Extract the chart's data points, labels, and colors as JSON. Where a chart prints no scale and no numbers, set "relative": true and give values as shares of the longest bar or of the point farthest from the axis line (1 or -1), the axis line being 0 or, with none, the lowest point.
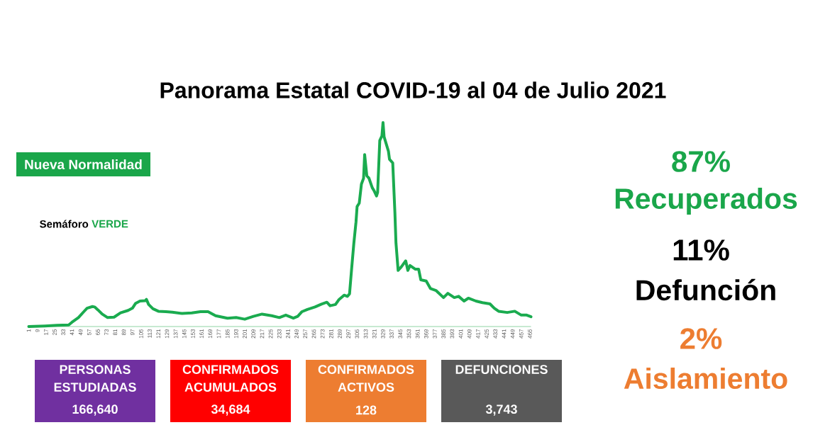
{
  "chart_data": [
    {
      "type": "line",
      "title": "Panorama Estatal COVID-19 al 04 de Julio 2021",
      "relative": true,
      "color": "#1aab4f",
      "x": [
        1,
        16,
        27,
        38,
        41,
        47,
        52,
        55,
        60,
        62,
        65,
        69,
        74,
        80,
        86,
        93,
        97,
        100,
        104,
        109,
        110,
        112,
        116,
        121,
        128,
        134,
        143,
        152,
        160,
        167,
        174,
        185,
        193,
        201,
        209,
        217,
        226,
        233,
        239,
        246,
        250,
        254,
        259,
        266,
        272,
        277,
        280,
        285,
        288,
        293,
        296,
        298,
        300,
        302,
        304,
        305,
        307,
        309,
        311,
        312,
        314,
        316,
        319,
        321,
        323,
        324,
        326,
        328,
        329,
        330,
        334,
        335,
        338,
        340,
        341,
        343,
        346,
        350,
        352,
        354,
        359,
        362,
        364,
        369,
        373,
        378,
        385,
        389,
        395,
        399,
        404,
        408,
        415,
        421,
        428,
        432,
        436,
        444,
        451,
        457,
        462,
        466
      ],
      "values": [
        0,
        0.003,
        0.006,
        0.008,
        0.021,
        0.044,
        0.073,
        0.09,
        0.098,
        0.096,
        0.082,
        0.061,
        0.044,
        0.046,
        0.067,
        0.079,
        0.09,
        0.114,
        0.125,
        0.127,
        0.133,
        0.108,
        0.087,
        0.075,
        0.073,
        0.07,
        0.064,
        0.067,
        0.073,
        0.073,
        0.053,
        0.041,
        0.044,
        0.036,
        0.05,
        0.061,
        0.053,
        0.044,
        0.056,
        0.041,
        0.05,
        0.073,
        0.084,
        0.096,
        0.11,
        0.119,
        0.102,
        0.108,
        0.131,
        0.154,
        0.148,
        0.16,
        0.287,
        0.409,
        0.513,
        0.588,
        0.605,
        0.698,
        0.727,
        0.843,
        0.739,
        0.727,
        0.681,
        0.663,
        0.64,
        0.657,
        0.912,
        0.935,
        1,
        0.93,
        0.86,
        0.82,
        0.802,
        0.559,
        0.409,
        0.275,
        0.293,
        0.322,
        0.275,
        0.299,
        0.281,
        0.281,
        0.229,
        0.223,
        0.186,
        0.177,
        0.142,
        0.163,
        0.142,
        0.148,
        0.125,
        0.139,
        0.125,
        0.117,
        0.111,
        0.09,
        0.075,
        0.069,
        0.075,
        0.056,
        0.056,
        0.048
      ],
      "xlim": [
        1,
        466
      ],
      "xticks": [
        1,
        9,
        17,
        25,
        33,
        41,
        49,
        57,
        65,
        73,
        81,
        89,
        97,
        105,
        113,
        121,
        129,
        137,
        145,
        153,
        161,
        169,
        177,
        185,
        193,
        201,
        209,
        217,
        225,
        233,
        241,
        249,
        257,
        265,
        273,
        281,
        289,
        297,
        305,
        313,
        321,
        329,
        337,
        345,
        353,
        361,
        369,
        377,
        385,
        393,
        401,
        409,
        417,
        425,
        433,
        441,
        449,
        457,
        465
      ]
    },
    {
      "type": "other",
      "annotations": [
        "Nueva Normalidad",
        "Semáforo",
        "VERDE"
      ],
      "color": "#1aa64a"
    },
    {
      "type": "other",
      "categories": [
        "Recuperados",
        "Defunción",
        "Aislamiento"
      ],
      "values": [
        87,
        11,
        2
      ],
      "value_labels": [
        "87%",
        "11%",
        "2%"
      ],
      "colors": [
        "#1aa64a",
        "#000000",
        "#ed7d31"
      ]
    },
    {
      "type": "other",
      "categories": [
        "PERSONAS ESTUDIADAS",
        "CONFIRMADOS ACUMULADOS",
        "CONFIRMADOS ACTIVOS",
        "DEFUNCIONES"
      ],
      "values": [
        166640,
        34684,
        128,
        3743
      ],
      "value_labels": [
        "166,640",
        "34,684",
        "128",
        "3,743"
      ],
      "colors": [
        "#7030a0",
        "#ff0000",
        "#ed7d31",
        "#595959"
      ]
    }
  ]
}
